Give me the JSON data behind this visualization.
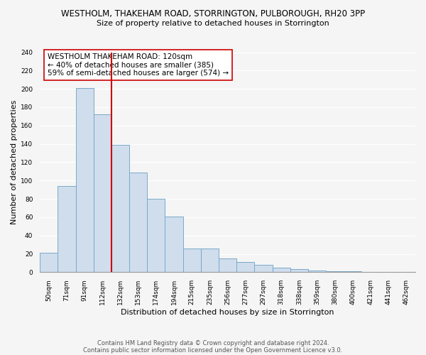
{
  "title": "WESTHOLM, THAKEHAM ROAD, STORRINGTON, PULBOROUGH, RH20 3PP",
  "subtitle": "Size of property relative to detached houses in Storrington",
  "xlabel": "Distribution of detached houses by size in Storrington",
  "ylabel": "Number of detached properties",
  "categories": [
    "50sqm",
    "71sqm",
    "91sqm",
    "112sqm",
    "132sqm",
    "153sqm",
    "174sqm",
    "194sqm",
    "215sqm",
    "235sqm",
    "256sqm",
    "277sqm",
    "297sqm",
    "318sqm",
    "338sqm",
    "359sqm",
    "380sqm",
    "400sqm",
    "421sqm",
    "441sqm",
    "462sqm"
  ],
  "values": [
    21,
    94,
    201,
    172,
    139,
    109,
    80,
    61,
    26,
    26,
    15,
    11,
    8,
    5,
    3,
    2,
    1,
    1,
    0,
    0,
    0
  ],
  "bar_color": "#cfdded",
  "bar_edge_color": "#7aaac8",
  "vline_x": 3.5,
  "vline_color": "#cc0000",
  "annotation_text": "WESTHOLM THAKEHAM ROAD: 120sqm\n← 40% of detached houses are smaller (385)\n59% of semi-detached houses are larger (574) →",
  "annotation_box_color": "#ffffff",
  "annotation_box_edge_color": "#cc0000",
  "ylim": [
    0,
    240
  ],
  "yticks": [
    0,
    20,
    40,
    60,
    80,
    100,
    120,
    140,
    160,
    180,
    200,
    220,
    240
  ],
  "footer_line1": "Contains HM Land Registry data © Crown copyright and database right 2024.",
  "footer_line2": "Contains public sector information licensed under the Open Government Licence v3.0.",
  "background_color": "#f5f5f5",
  "plot_bg_color": "#f5f5f5",
  "grid_color": "#ffffff",
  "title_fontsize": 8.5,
  "subtitle_fontsize": 8,
  "axis_label_fontsize": 8,
  "tick_fontsize": 6.5,
  "footer_fontsize": 6,
  "annotation_fontsize": 7.5
}
